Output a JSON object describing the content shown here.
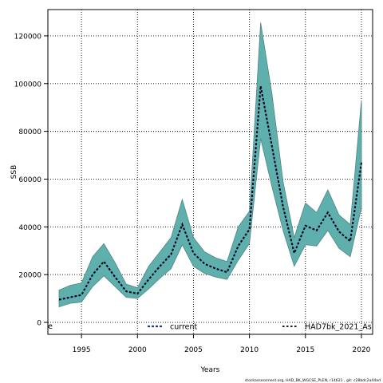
{
  "chart_data": {
    "type": "area",
    "xlabel": "Years",
    "ylabel": "SSB",
    "xlim": [
      1992,
      2021
    ],
    "ylim": [
      -5000,
      131000
    ],
    "x_ticks": [
      1995,
      2000,
      2005,
      2010,
      2015,
      2020
    ],
    "y_ticks": [
      0,
      20000,
      40000,
      60000,
      80000,
      100000,
      120000
    ],
    "y_tick_labels": [
      "0",
      "20000",
      "40000",
      "60000",
      "80000",
      "100000",
      "120000"
    ],
    "grid": true,
    "legend_position": "bottom",
    "x": [
      1993,
      1994,
      1995,
      1996,
      1997,
      1998,
      1999,
      2000,
      2001,
      2002,
      2003,
      2004,
      2005,
      2006,
      2007,
      2008,
      2009,
      2010,
      2011,
      2012,
      2013,
      2014,
      2015,
      2016,
      2017,
      2018,
      2019,
      2020
    ],
    "series": [
      {
        "name": "current",
        "color": "#1f3a93",
        "values": [
          9500,
          10500,
          11500,
          20000,
          25500,
          19000,
          13000,
          12000,
          18000,
          23500,
          28500,
          41000,
          29000,
          24500,
          22500,
          21000,
          32000,
          39000,
          99000,
          74000,
          48500,
          29000,
          40500,
          38500,
          46000,
          38000,
          34000,
          67000
        ]
      },
      {
        "name": "HAD7bk_2021_As",
        "color": "#000000",
        "values": [
          9500,
          10500,
          11500,
          20000,
          25500,
          19000,
          13000,
          12000,
          18000,
          23500,
          28500,
          41000,
          29000,
          24500,
          22500,
          21000,
          32000,
          39000,
          99000,
          74000,
          48500,
          29000,
          40500,
          38500,
          46000,
          38000,
          34000,
          67000
        ],
        "upper": [
          13500,
          15500,
          16500,
          27500,
          33000,
          25000,
          16000,
          14500,
          23500,
          29500,
          35500,
          51500,
          35500,
          29500,
          27000,
          25500,
          40000,
          46500,
          125500,
          96000,
          59000,
          35500,
          50000,
          46000,
          55500,
          45000,
          41000,
          93000
        ],
        "lower": [
          6500,
          8000,
          8500,
          15000,
          19500,
          15000,
          10500,
          10000,
          14000,
          18500,
          22500,
          32500,
          23500,
          20500,
          19000,
          18000,
          26000,
          33000,
          77000,
          57000,
          38500,
          23500,
          32500,
          32000,
          38500,
          31000,
          27500,
          48000
        ]
      }
    ],
    "band_color": "#5fb0ad",
    "band_edge_color": "#4d8583",
    "legend_prefix": "e",
    "footer": "stockassessment.org,  HAD_BK_WGCSE_PLEN,  r14621 ,  git: c28bdc2a44ad"
  }
}
